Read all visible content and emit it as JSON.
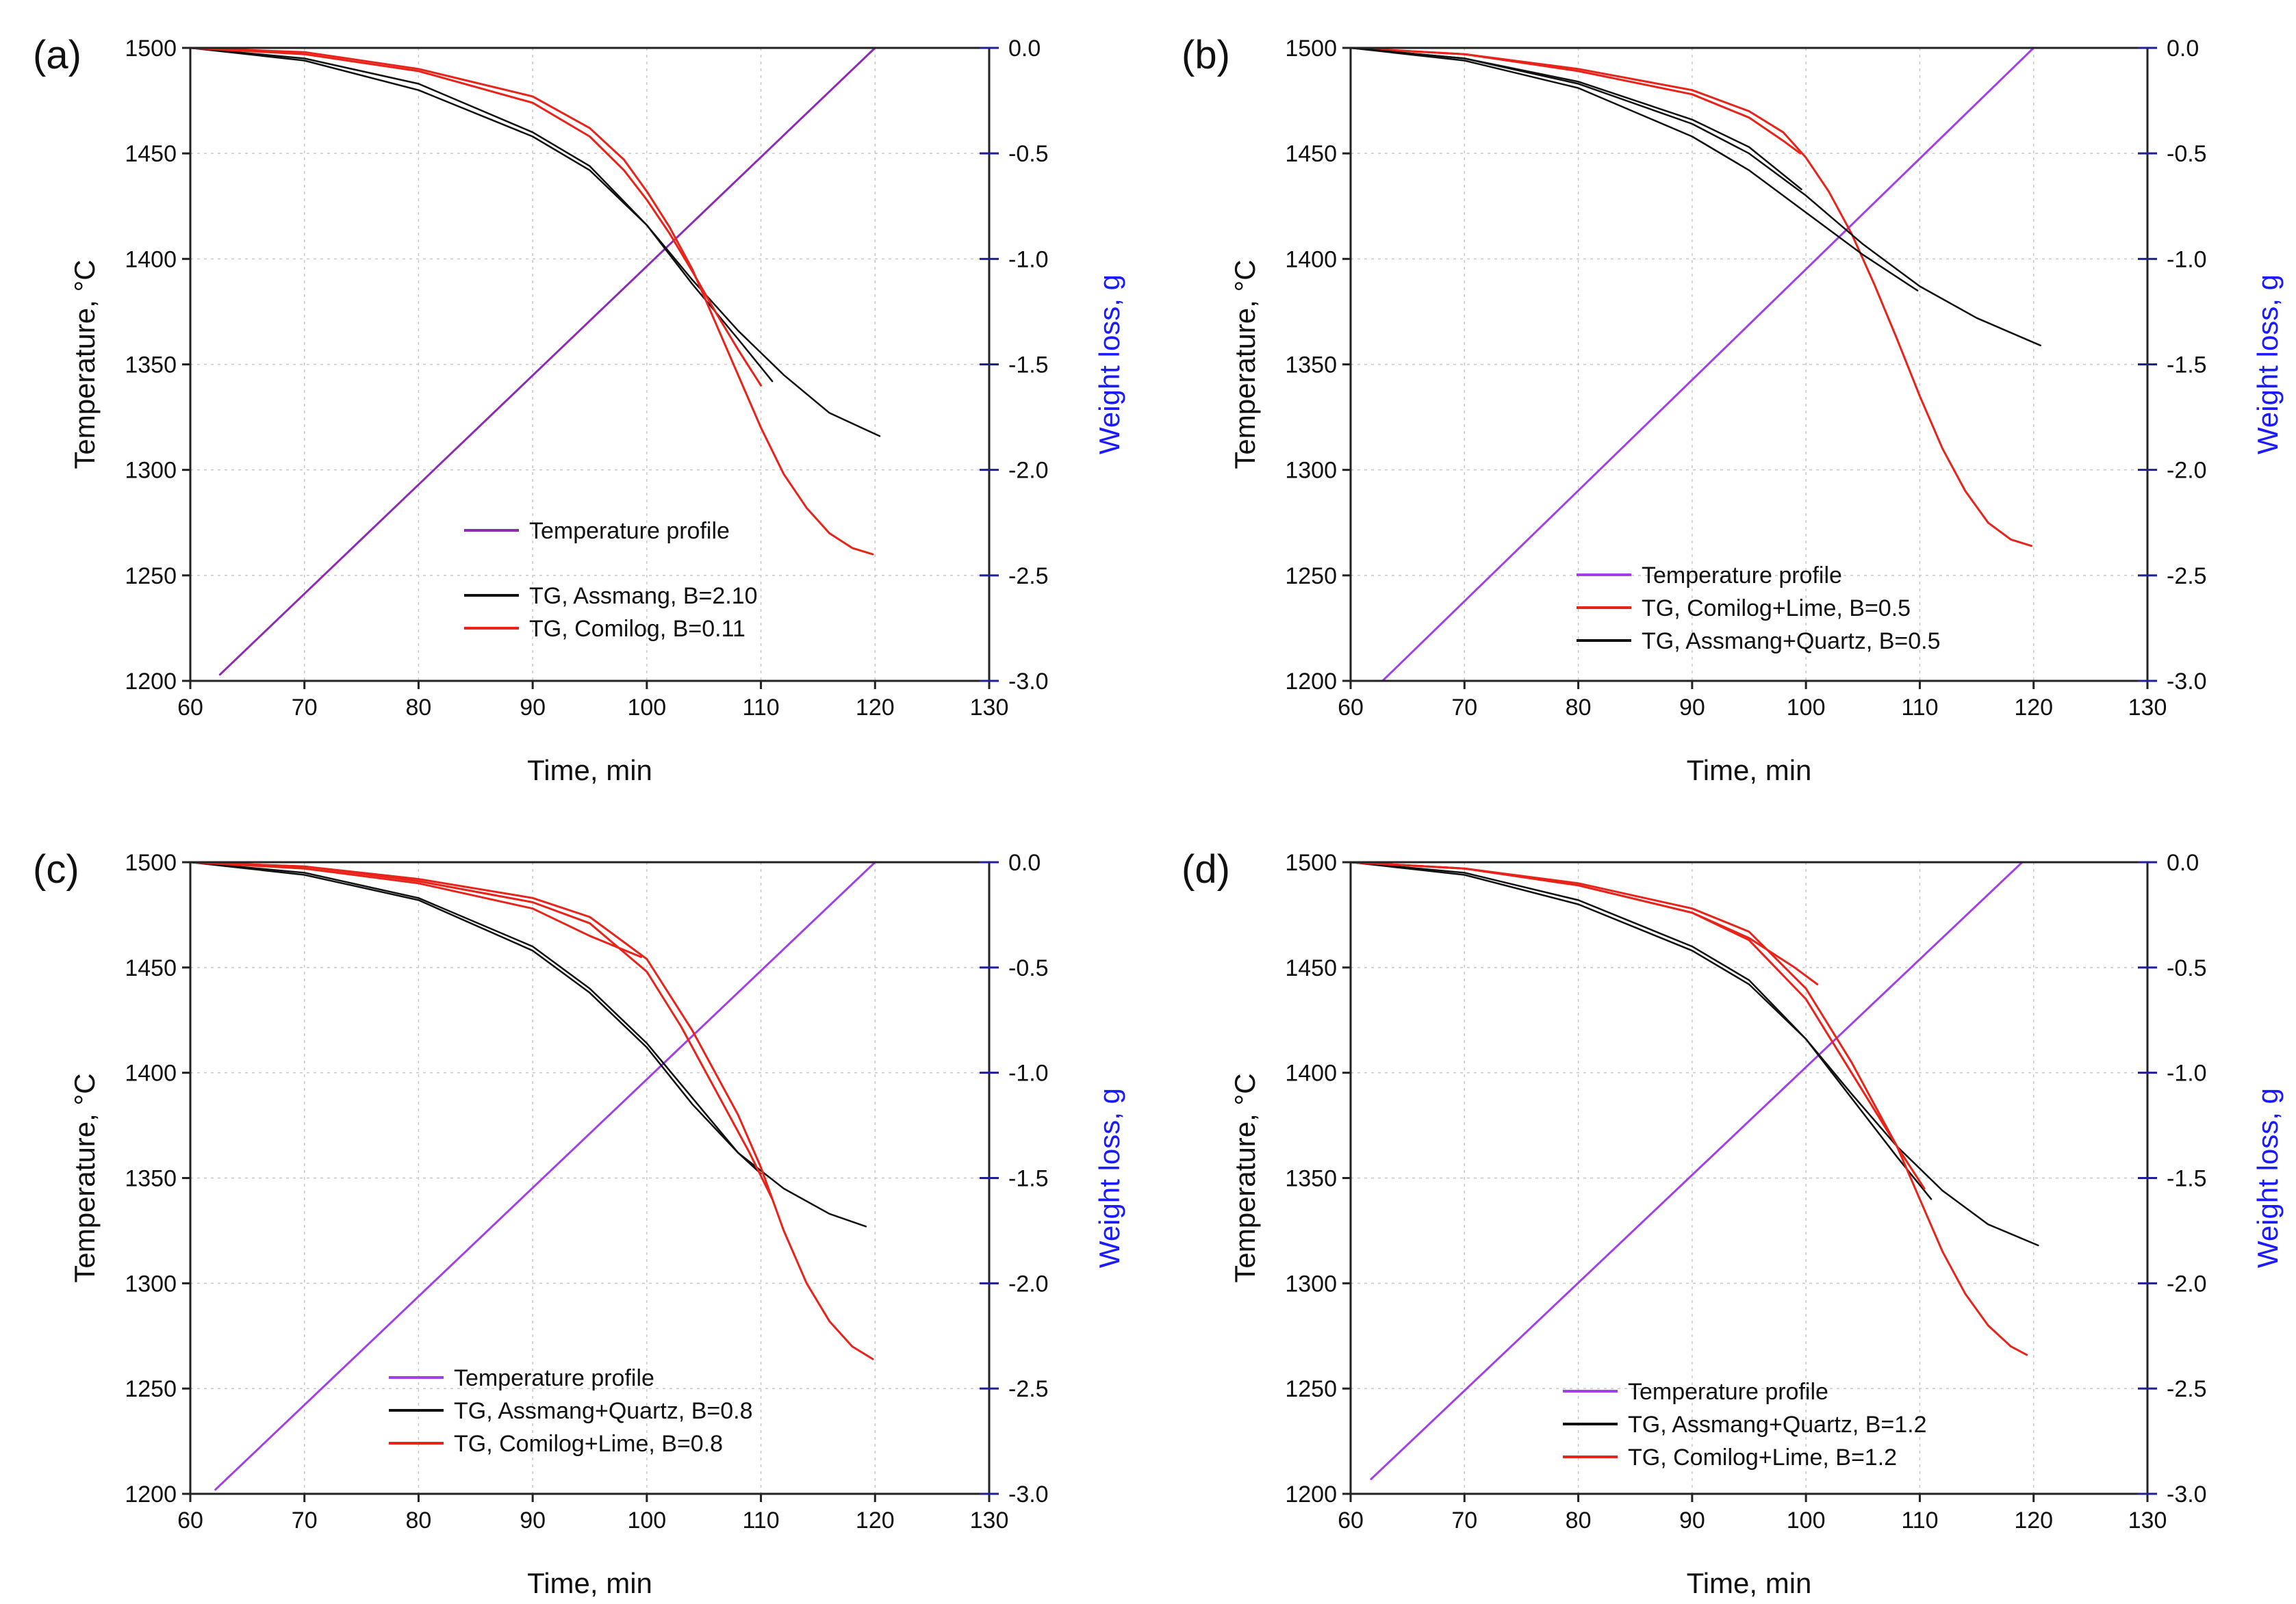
{
  "figure": {
    "panels": [
      "(a)",
      "(b)",
      "(c)",
      "(d)"
    ]
  },
  "chart_data": [
    {
      "panel_label": "(a)",
      "type": "line",
      "xlabel": "Time, min",
      "ylabel_left": "Temperature, °C",
      "ylabel_right": "Weight loss, g",
      "xlim": [
        60,
        130
      ],
      "ylim_left": [
        1200,
        1500
      ],
      "ylim_right": [
        -3.0,
        0.0
      ],
      "xticks": [
        "60",
        "70",
        "80",
        "90",
        "100",
        "110",
        "120",
        "130"
      ],
      "yticks_left": [
        "1200",
        "1250",
        "1300",
        "1350",
        "1400",
        "1450",
        "1500"
      ],
      "yticks_right": [
        "-3.0",
        "-2.5",
        "-2.0",
        "-1.5",
        "-1.0",
        "-0.5",
        "0.0"
      ],
      "grid": true,
      "legend_position": "center-bottom",
      "legend_gap_after_first": true,
      "series": [
        {
          "name": "Temperature profile",
          "axis": "left",
          "color": "#8e2bb5",
          "width": 3,
          "x": [
            62.6,
            120
          ],
          "y": [
            1203,
            1500
          ]
        },
        {
          "name": "TG, Assmang, B=2.10",
          "axis": "right",
          "color": "#111111",
          "width": 2.5,
          "x": [
            60,
            70,
            80,
            90,
            95,
            100,
            104,
            108,
            112,
            116,
            120.4
          ],
          "y": [
            0,
            -0.06,
            -0.2,
            -0.42,
            -0.58,
            -0.84,
            -1.1,
            -1.34,
            -1.55,
            -1.73,
            -1.84
          ]
        },
        {
          "name": "TG, Assmang, B=2.10 (repeat)",
          "legend": false,
          "axis": "right",
          "color": "#111111",
          "width": 2.5,
          "x": [
            60,
            70,
            80,
            90,
            95,
            100,
            104,
            108,
            111
          ],
          "y": [
            0,
            -0.05,
            -0.17,
            -0.4,
            -0.56,
            -0.84,
            -1.12,
            -1.38,
            -1.58
          ]
        },
        {
          "name": "TG, Comilog, B=0.11",
          "axis": "right",
          "color": "#e8231a",
          "width": 3,
          "x": [
            60,
            70,
            80,
            90,
            95,
            98,
            100,
            102,
            104,
            106,
            108,
            110,
            112,
            114,
            116,
            118,
            119.8
          ],
          "y": [
            0,
            -0.02,
            -0.1,
            -0.23,
            -0.38,
            -0.53,
            -0.68,
            -0.85,
            -1.05,
            -1.3,
            -1.55,
            -1.8,
            -2.02,
            -2.18,
            -2.3,
            -2.37,
            -2.4
          ]
        },
        {
          "name": "TG, Comilog, B=0.11 (repeat)",
          "legend": false,
          "axis": "right",
          "color": "#e8231a",
          "width": 3,
          "x": [
            60,
            70,
            80,
            90,
            95,
            98,
            100,
            102,
            104,
            106,
            108,
            110
          ],
          "y": [
            0,
            -0.03,
            -0.11,
            -0.26,
            -0.42,
            -0.58,
            -0.72,
            -0.88,
            -1.06,
            -1.25,
            -1.43,
            -1.6
          ]
        }
      ],
      "legend": [
        "Temperature profile",
        "TG, Assmang, B=2.10",
        "TG, Comilog, B=0.11"
      ]
    },
    {
      "panel_label": "(b)",
      "type": "line",
      "xlabel": "Time, min",
      "ylabel_left": "Temperature, °C",
      "ylabel_right": "Weight loss, g",
      "xlim": [
        60,
        130
      ],
      "ylim_left": [
        1200,
        1500
      ],
      "ylim_right": [
        -3.0,
        0.0
      ],
      "xticks": [
        "60",
        "70",
        "80",
        "90",
        "100",
        "110",
        "120",
        "130"
      ],
      "yticks_left": [
        "1200",
        "1250",
        "1300",
        "1350",
        "1400",
        "1450",
        "1500"
      ],
      "yticks_right": [
        "-3.0",
        "-2.5",
        "-2.0",
        "-1.5",
        "-1.0",
        "-0.5",
        "0.0"
      ],
      "grid": true,
      "legend_position": "center-bottom",
      "legend_gap_after_first": false,
      "series": [
        {
          "name": "Temperature profile",
          "axis": "left",
          "color": "#a040e6",
          "width": 3,
          "x": [
            62.8,
            120
          ],
          "y": [
            1200,
            1500
          ]
        },
        {
          "name": "TG, Comilog+Lime, B=0.5",
          "axis": "right",
          "color": "#e8231a",
          "width": 3,
          "x": [
            60,
            70,
            80,
            90,
            95,
            98,
            100,
            102,
            104,
            106,
            108,
            110,
            112,
            114,
            116,
            118,
            119.8
          ],
          "y": [
            0,
            -0.03,
            -0.1,
            -0.2,
            -0.3,
            -0.4,
            -0.52,
            -0.68,
            -0.88,
            -1.12,
            -1.38,
            -1.65,
            -1.9,
            -2.1,
            -2.25,
            -2.33,
            -2.36
          ]
        },
        {
          "name": "TG, Comilog+Lime, B=0.5 (repeat)",
          "legend": false,
          "axis": "right",
          "color": "#e8231a",
          "width": 3,
          "x": [
            60,
            70,
            80,
            90,
            95,
            98,
            99.5
          ],
          "y": [
            0,
            -0.03,
            -0.11,
            -0.22,
            -0.33,
            -0.44,
            -0.5
          ]
        },
        {
          "name": "TG, Assmang+Quartz, B=0.5",
          "axis": "right",
          "color": "#111111",
          "width": 2.5,
          "x": [
            60,
            70,
            80,
            90,
            95,
            100,
            105,
            110,
            115,
            120.6
          ],
          "y": [
            0,
            -0.05,
            -0.17,
            -0.36,
            -0.5,
            -0.7,
            -0.93,
            -1.13,
            -1.28,
            -1.41
          ]
        },
        {
          "name": "TG, Assmang+Quartz, B=0.5 (repeat 1)",
          "legend": false,
          "axis": "right",
          "color": "#111111",
          "width": 2.5,
          "x": [
            60,
            70,
            80,
            90,
            95,
            100,
            105,
            109.8
          ],
          "y": [
            0,
            -0.06,
            -0.19,
            -0.42,
            -0.58,
            -0.78,
            -0.98,
            -1.15
          ]
        },
        {
          "name": "TG, Assmang+Quartz, B=0.5 (repeat 2)",
          "legend": false,
          "axis": "right",
          "color": "#111111",
          "width": 2.5,
          "x": [
            60,
            70,
            80,
            90,
            95,
            99.6
          ],
          "y": [
            0,
            -0.05,
            -0.16,
            -0.34,
            -0.47,
            -0.67
          ]
        }
      ],
      "legend": [
        "Temperature profile",
        "TG, Comilog+Lime, B=0.5",
        "TG, Assmang+Quartz, B=0.5"
      ]
    },
    {
      "panel_label": "(c)",
      "type": "line",
      "xlabel": "Time, min",
      "ylabel_left": "Temperature, °C",
      "ylabel_right": "Weight loss, g",
      "xlim": [
        60,
        130
      ],
      "ylim_left": [
        1200,
        1500
      ],
      "ylim_right": [
        -3.0,
        0.0
      ],
      "xticks": [
        "60",
        "70",
        "80",
        "90",
        "100",
        "110",
        "120",
        "130"
      ],
      "yticks_left": [
        "1200",
        "1250",
        "1300",
        "1350",
        "1400",
        "1450",
        "1500"
      ],
      "yticks_right": [
        "-3.0",
        "-2.5",
        "-2.0",
        "-1.5",
        "-1.0",
        "-0.5",
        "0.0"
      ],
      "grid": true,
      "legend_position": "left-bottom",
      "legend_gap_after_first": false,
      "series": [
        {
          "name": "Temperature profile",
          "axis": "left",
          "color": "#a040e6",
          "width": 3,
          "x": [
            62.2,
            120
          ],
          "y": [
            1202,
            1500
          ]
        },
        {
          "name": "TG, Assmang+Quartz, B=0.8",
          "axis": "right",
          "color": "#111111",
          "width": 2.5,
          "x": [
            60,
            70,
            80,
            90,
            95,
            100,
            104,
            108,
            112,
            116,
            119.2
          ],
          "y": [
            0,
            -0.06,
            -0.18,
            -0.42,
            -0.62,
            -0.88,
            -1.15,
            -1.38,
            -1.55,
            -1.67,
            -1.73
          ]
        },
        {
          "name": "TG, Assmang+Quartz, B=0.8 (repeat)",
          "legend": false,
          "axis": "right",
          "color": "#111111",
          "width": 2.5,
          "x": [
            60,
            70,
            80,
            90,
            95,
            100,
            104,
            108,
            110
          ],
          "y": [
            0,
            -0.05,
            -0.17,
            -0.4,
            -0.6,
            -0.86,
            -1.12,
            -1.38,
            -1.48
          ]
        },
        {
          "name": "TG, Comilog+Lime, B=0.8",
          "axis": "right",
          "color": "#e8231a",
          "width": 3,
          "x": [
            60,
            70,
            80,
            90,
            95,
            100,
            104,
            108,
            110,
            112,
            114,
            116,
            118,
            119.8
          ],
          "y": [
            0,
            -0.02,
            -0.08,
            -0.17,
            -0.26,
            -0.46,
            -0.8,
            -1.2,
            -1.45,
            -1.75,
            -2.0,
            -2.18,
            -2.3,
            -2.36
          ]
        },
        {
          "name": "TG, Comilog+Lime, B=0.8 (repeat 1)",
          "legend": false,
          "axis": "right",
          "color": "#e8231a",
          "width": 3,
          "x": [
            60,
            70,
            80,
            90,
            95,
            100,
            103,
            106,
            109,
            111
          ],
          "y": [
            0,
            -0.02,
            -0.09,
            -0.19,
            -0.29,
            -0.52,
            -0.78,
            -1.08,
            -1.38,
            -1.6
          ]
        },
        {
          "name": "TG, Comilog+Lime, B=0.8 (repeat 2)",
          "legend": false,
          "axis": "right",
          "color": "#e8231a",
          "width": 3,
          "x": [
            60,
            70,
            80,
            90,
            95,
            99.5
          ],
          "y": [
            0,
            -0.03,
            -0.1,
            -0.22,
            -0.35,
            -0.45
          ]
        }
      ],
      "legend": [
        "Temperature profile",
        "TG, Assmang+Quartz, B=0.8",
        "TG, Comilog+Lime, B=0.8"
      ]
    },
    {
      "panel_label": "(d)",
      "type": "line",
      "xlabel": "Time, min",
      "ylabel_left": "Temperature, °C",
      "ylabel_right": "Weight loss, g",
      "xlim": [
        60,
        130
      ],
      "ylim_left": [
        1200,
        1500
      ],
      "ylim_right": [
        -3.0,
        0.0
      ],
      "xticks": [
        "60",
        "70",
        "80",
        "90",
        "100",
        "110",
        "120",
        "130"
      ],
      "yticks_left": [
        "1200",
        "1250",
        "1300",
        "1350",
        "1400",
        "1450",
        "1500"
      ],
      "yticks_right": [
        "-3.0",
        "-2.5",
        "-2.0",
        "-1.5",
        "-1.0",
        "-0.5",
        "0.0"
      ],
      "grid": true,
      "legend_position": "center-bottom",
      "legend_gap_after_first": false,
      "series": [
        {
          "name": "Temperature profile",
          "axis": "left",
          "color": "#a040e6",
          "width": 3,
          "x": [
            61.8,
            119
          ],
          "y": [
            1207,
            1500
          ]
        },
        {
          "name": "TG, Assmang+Quartz, B=1.2",
          "axis": "right",
          "color": "#111111",
          "width": 2.5,
          "x": [
            60,
            70,
            80,
            90,
            95,
            100,
            104,
            108,
            112,
            116,
            120.4
          ],
          "y": [
            0,
            -0.06,
            -0.2,
            -0.42,
            -0.58,
            -0.84,
            -1.1,
            -1.35,
            -1.56,
            -1.72,
            -1.82
          ]
        },
        {
          "name": "TG, Assmang+Quartz, B=1.2 (repeat)",
          "legend": false,
          "axis": "right",
          "color": "#111111",
          "width": 2.5,
          "x": [
            60,
            70,
            80,
            90,
            95,
            100,
            104,
            108,
            111
          ],
          "y": [
            0,
            -0.05,
            -0.18,
            -0.4,
            -0.56,
            -0.84,
            -1.12,
            -1.4,
            -1.6
          ]
        },
        {
          "name": "TG, Comilog+Lime, B=1.2",
          "axis": "right",
          "color": "#e8231a",
          "width": 3,
          "x": [
            60,
            70,
            80,
            90,
            95,
            100,
            104,
            108,
            110,
            112,
            114,
            116,
            118,
            119.4
          ],
          "y": [
            0,
            -0.03,
            -0.1,
            -0.22,
            -0.33,
            -0.6,
            -0.95,
            -1.35,
            -1.6,
            -1.85,
            -2.05,
            -2.2,
            -2.3,
            -2.34
          ]
        },
        {
          "name": "TG, Comilog+Lime, B=1.2 (repeat 1)",
          "legend": false,
          "axis": "right",
          "color": "#e8231a",
          "width": 3,
          "x": [
            60,
            70,
            80,
            90,
            95,
            100,
            104,
            108,
            110.4
          ],
          "y": [
            0,
            -0.03,
            -0.11,
            -0.24,
            -0.37,
            -0.65,
            -1.0,
            -1.35,
            -1.55
          ]
        },
        {
          "name": "TG, Comilog+Lime, B=1.2 (repeat 2)",
          "legend": false,
          "axis": "right",
          "color": "#e8231a",
          "width": 3,
          "x": [
            60,
            70,
            80,
            90,
            95,
            99,
            101
          ],
          "y": [
            0,
            -0.03,
            -0.11,
            -0.24,
            -0.36,
            -0.5,
            -0.58
          ]
        }
      ],
      "legend": [
        "Temperature profile",
        "TG, Assmang+Quartz, B=1.2",
        "TG, Comilog+Lime, B=1.2"
      ]
    }
  ]
}
